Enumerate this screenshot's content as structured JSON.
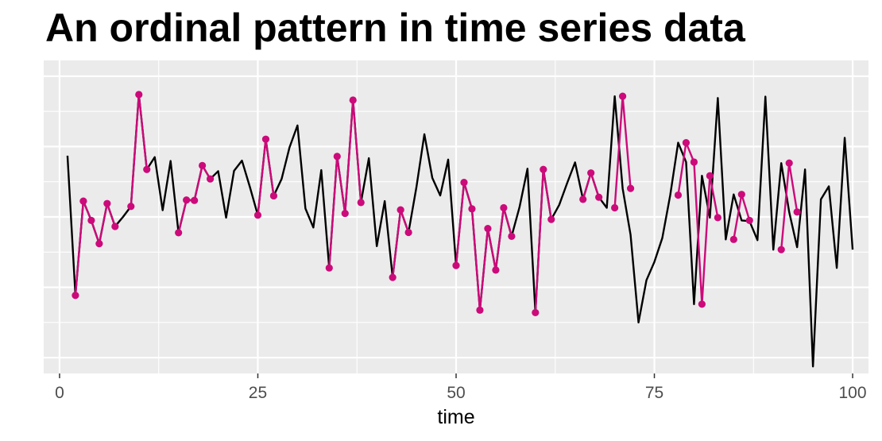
{
  "chart_data": {
    "type": "line",
    "title": "An ordinal pattern in time series data",
    "xlabel": "time",
    "ylabel": "",
    "xlim": [
      -2,
      102
    ],
    "ylim": [
      -4.45,
      4.45
    ],
    "x_ticks": [
      0,
      25,
      50,
      75,
      100
    ],
    "x_tick_labels": [
      "0",
      "25",
      "50",
      "75",
      "100"
    ],
    "y_ticks": [
      -4,
      -2,
      0,
      2,
      4
    ],
    "y_axis_labels_shown": false,
    "grid": true,
    "background": "#ebebeb",
    "series": [
      {
        "color": "#000000",
        "x": [
          1,
          2,
          3,
          4,
          5,
          6,
          7,
          8,
          9,
          10,
          11,
          12,
          13,
          14,
          15,
          16,
          17,
          18,
          19,
          20,
          21,
          22,
          23,
          24,
          25,
          26,
          27,
          28,
          29,
          30,
          31,
          32,
          33,
          34,
          35,
          36,
          37,
          38,
          39,
          40,
          41,
          42,
          43,
          44,
          45,
          46,
          47,
          48,
          49,
          50,
          51,
          52,
          53,
          54,
          55,
          56,
          57,
          58,
          59,
          60,
          61,
          62,
          63,
          64,
          65,
          66,
          67,
          68,
          69,
          70,
          71,
          72,
          73,
          74,
          75,
          76,
          77,
          78,
          79,
          80,
          81,
          82,
          83,
          84,
          85,
          86,
          87,
          88,
          89,
          90,
          91,
          92,
          93,
          94,
          95,
          96,
          97,
          98,
          99,
          100
        ],
        "y": [
          1.74,
          -2.23,
          0.45,
          -0.1,
          -0.76,
          0.38,
          -0.27,
          0.0,
          0.3,
          3.48,
          1.35,
          1.7,
          0.19,
          1.59,
          -0.45,
          0.48,
          0.47,
          1.46,
          1.08,
          1.3,
          -0.02,
          1.31,
          1.6,
          0.85,
          0.05,
          2.21,
          0.6,
          1.08,
          1.98,
          2.6,
          0.24,
          -0.3,
          1.33,
          -1.45,
          1.72,
          0.1,
          3.32,
          0.41,
          1.67,
          -0.83,
          0.45,
          -1.72,
          0.2,
          -0.44,
          0.85,
          2.35,
          1.11,
          0.61,
          1.63,
          -1.38,
          0.98,
          0.23,
          -2.65,
          -0.33,
          -1.51,
          0.26,
          -0.55,
          0.28,
          1.37,
          -2.72,
          1.35,
          -0.07,
          0.34,
          0.96,
          1.55,
          0.5,
          1.25,
          0.56,
          0.26,
          3.43,
          0.81,
          -0.51,
          -3.0,
          -1.8,
          -1.28,
          -0.6,
          0.62,
          2.11,
          1.56,
          -2.48,
          1.17,
          -0.02,
          3.38,
          -0.64,
          0.64,
          -0.1,
          -0.12,
          -0.66,
          3.42,
          -0.93,
          1.53,
          0.14,
          -0.86,
          1.35,
          -4.25,
          0.5,
          0.87,
          -1.45,
          2.25,
          -0.93
        ]
      },
      {
        "color": "#cc0a7a",
        "segments": [
          {
            "x": [
              2,
              3,
              4,
              5,
              6,
              7
            ],
            "y": [
              -2.23,
              0.45,
              -0.1,
              -0.76,
              0.38,
              -0.27
            ]
          },
          {
            "x": [
              9,
              10,
              11
            ],
            "y": [
              0.3,
              3.48,
              1.35
            ]
          },
          {
            "x": [
              15,
              16,
              17,
              18,
              19
            ],
            "y": [
              -0.45,
              0.48,
              0.47,
              1.46,
              1.08
            ]
          },
          {
            "x": [
              25,
              26,
              27
            ],
            "y": [
              0.05,
              2.21,
              0.6
            ]
          },
          {
            "x": [
              34,
              35,
              36,
              37,
              38
            ],
            "y": [
              -1.45,
              1.72,
              0.1,
              3.32,
              0.41
            ]
          },
          {
            "x": [
              42,
              43,
              44
            ],
            "y": [
              -1.72,
              0.2,
              -0.44
            ]
          },
          {
            "x": [
              50,
              51,
              52,
              53,
              54,
              55,
              56,
              57
            ],
            "y": [
              -1.38,
              0.98,
              0.23,
              -2.65,
              -0.33,
              -1.51,
              0.26,
              -0.55
            ]
          },
          {
            "x": [
              60,
              61,
              62
            ],
            "y": [
              -2.72,
              1.35,
              -0.07
            ]
          },
          {
            "x": [
              66,
              67,
              68
            ],
            "y": [
              0.5,
              1.25,
              0.56
            ]
          },
          {
            "x": [
              70,
              71,
              72
            ],
            "y": [
              0.26,
              3.43,
              0.81
            ]
          },
          {
            "x": [
              78,
              79,
              80,
              81,
              82,
              83
            ],
            "y": [
              0.62,
              2.11,
              1.56,
              -2.48,
              1.17,
              -0.02
            ]
          },
          {
            "x": [
              85,
              86,
              87
            ],
            "y": [
              -0.64,
              0.64,
              -0.1
            ]
          },
          {
            "x": [
              91,
              92,
              93
            ],
            "y": [
              -0.93,
              1.53,
              0.14
            ]
          }
        ]
      }
    ]
  }
}
